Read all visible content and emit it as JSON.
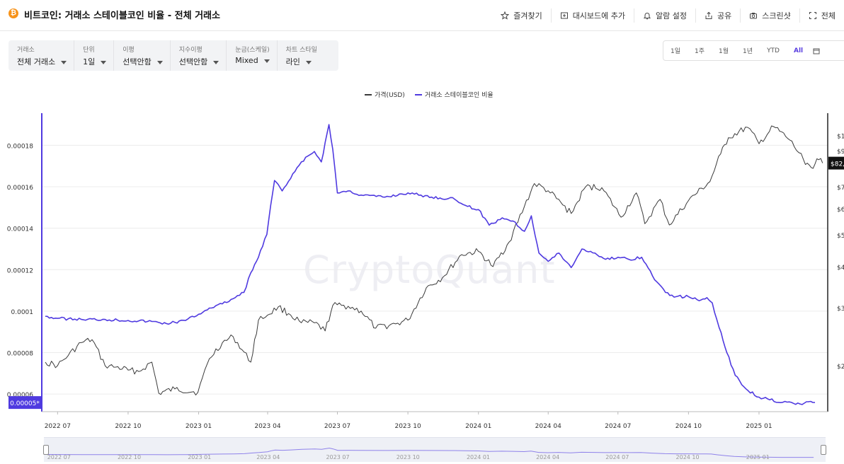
{
  "header": {
    "coin_icon": "bitcoin-icon",
    "title": "비트코인: 거래소 스테이블코인 비율 - 전체 거래소",
    "actions": [
      {
        "label": "즐겨찾기",
        "icon": "star-icon"
      },
      {
        "label": "대시보드에 추가",
        "icon": "dashboard-add-icon"
      },
      {
        "label": "알람 설정",
        "icon": "bell-icon"
      },
      {
        "label": "공유",
        "icon": "share-icon"
      },
      {
        "label": "스크린샷",
        "icon": "camera-icon"
      },
      {
        "label": "전체",
        "icon": "fullscreen-icon"
      }
    ]
  },
  "filters": [
    {
      "label": "거래소",
      "value": "전체 거래소"
    },
    {
      "label": "단위",
      "value": "1일"
    },
    {
      "label": "이평",
      "value": "선택안함"
    },
    {
      "label": "지수이평",
      "value": "선택안함"
    },
    {
      "label": "눈금(스케일)",
      "value": "Mixed"
    },
    {
      "label": "차트 스타일",
      "value": "라인"
    }
  ],
  "ranges": [
    "1일",
    "1주",
    "1월",
    "1년",
    "YTD",
    "All"
  ],
  "active_range": "All",
  "colors": {
    "accent": "#5a3fe0",
    "ratio": "#4f3ae0",
    "price": "#3a3a3a"
  },
  "watermark": "CryptoQuant",
  "chart_data": {
    "type": "line",
    "legend": [
      {
        "name": "가격(USD)",
        "color": "#3a3a3a"
      },
      {
        "name": "거래소 스테이블코인 비율",
        "color": "#4f3ae0"
      }
    ],
    "x_labels": [
      "2022 07",
      "2022 10",
      "2023 01",
      "2023 04",
      "2023 07",
      "2023 10",
      "2024 01",
      "2024 04",
      "2024 07",
      "2024 10",
      "2025 01"
    ],
    "y_left_labels": [
      "0.00006",
      "0.00008",
      "0.0001",
      "0.00012",
      "0.00014",
      "0.00016",
      "0.00018"
    ],
    "y_left_range": [
      5.15e-05,
      0.0001955
    ],
    "y_right_labels": [
      "$2",
      "$3",
      "$4",
      "$5",
      "$6",
      "$7",
      "$9",
      "$1"
    ],
    "y_right_scale": "log",
    "current_left_label": "0.00005*",
    "current_right_label": "$82,",
    "series": [
      {
        "name": "거래소 스테이블코인 비율",
        "axis": "left",
        "points": [
          [
            "2022-06-15",
            9.75e-05
          ],
          [
            "2022-07-01",
            9.65e-05
          ],
          [
            "2022-08-01",
            9.6e-05
          ],
          [
            "2022-09-01",
            9.6e-05
          ],
          [
            "2022-10-01",
            9.55e-05
          ],
          [
            "2022-11-01",
            9.5e-05
          ],
          [
            "2022-11-20",
            9.4e-05
          ],
          [
            "2022-12-15",
            9.55e-05
          ],
          [
            "2023-01-01",
            9.85e-05
          ],
          [
            "2023-01-15",
            0.0001015
          ],
          [
            "2023-02-01",
            0.0001035
          ],
          [
            "2023-02-15",
            0.000106
          ],
          [
            "2023-03-01",
            0.000109
          ],
          [
            "2023-03-10",
            0.0001185
          ],
          [
            "2023-03-20",
            0.000126
          ],
          [
            "2023-03-31",
            0.000137
          ],
          [
            "2023-04-05",
            0.000151
          ],
          [
            "2023-04-10",
            0.000163
          ],
          [
            "2023-04-20",
            0.000158
          ],
          [
            "2023-05-01",
            0.000164
          ],
          [
            "2023-05-15",
            0.000172
          ],
          [
            "2023-06-01",
            0.000177
          ],
          [
            "2023-06-10",
            0.000172
          ],
          [
            "2023-06-20",
            0.00019
          ],
          [
            "2023-06-25",
            0.000178
          ],
          [
            "2023-07-01",
            0.000157
          ],
          [
            "2023-07-15",
            0.000158
          ],
          [
            "2023-08-01",
            0.000156
          ],
          [
            "2023-09-01",
            0.000155
          ],
          [
            "2023-10-01",
            0.000157
          ],
          [
            "2023-11-01",
            0.000155
          ],
          [
            "2023-12-01",
            0.000154
          ],
          [
            "2023-12-15",
            0.000151
          ],
          [
            "2024-01-01",
            0.000149
          ],
          [
            "2024-01-15",
            0.0001415
          ],
          [
            "2024-02-01",
            0.000145
          ],
          [
            "2024-02-15",
            0.0001435
          ],
          [
            "2024-03-01",
            0.0001385
          ],
          [
            "2024-03-10",
            0.000146
          ],
          [
            "2024-03-20",
            0.000128
          ],
          [
            "2024-04-01",
            0.000124
          ],
          [
            "2024-04-15",
            0.000128
          ],
          [
            "2024-05-01",
            0.000121
          ],
          [
            "2024-05-15",
            0.00013
          ],
          [
            "2024-06-01",
            0.000128
          ],
          [
            "2024-06-15",
            0.000125
          ],
          [
            "2024-07-01",
            0.000126
          ],
          [
            "2024-07-15",
            0.000125
          ],
          [
            "2024-08-01",
            0.000126
          ],
          [
            "2024-08-15",
            0.000117
          ],
          [
            "2024-09-01",
            0.000109
          ],
          [
            "2024-09-15",
            0.000107
          ],
          [
            "2024-10-01",
            0.000107
          ],
          [
            "2024-10-15",
            0.000105
          ],
          [
            "2024-10-25",
            0.0001065
          ],
          [
            "2024-11-01",
            0.000104
          ],
          [
            "2024-11-10",
            9.2e-05
          ],
          [
            "2024-11-20",
            8e-05
          ],
          [
            "2024-12-01",
            6.9e-05
          ],
          [
            "2024-12-15",
            6.25e-05
          ],
          [
            "2025-01-01",
            5.85e-05
          ],
          [
            "2025-01-15",
            5.72e-05
          ],
          [
            "2025-02-01",
            5.6e-05
          ],
          [
            "2025-02-15",
            5.55e-05
          ],
          [
            "2025-03-01",
            5.56e-05
          ],
          [
            "2025-03-15",
            5.59e-05
          ]
        ]
      },
      {
        "name": "가격(USD)",
        "axis": "right",
        "points": [
          [
            "2022-06-15",
            20500
          ],
          [
            "2022-07-01",
            20000
          ],
          [
            "2022-07-15",
            21500
          ],
          [
            "2022-08-01",
            23500
          ],
          [
            "2022-08-15",
            24000
          ],
          [
            "2022-09-01",
            20000
          ],
          [
            "2022-09-15",
            19800
          ],
          [
            "2022-10-01",
            19400
          ],
          [
            "2022-10-15",
            19200
          ],
          [
            "2022-11-01",
            20500
          ],
          [
            "2022-11-10",
            16500
          ],
          [
            "2022-12-01",
            17000
          ],
          [
            "2022-12-31",
            16600
          ],
          [
            "2023-01-15",
            21000
          ],
          [
            "2023-02-01",
            23500
          ],
          [
            "2023-02-15",
            24500
          ],
          [
            "2023-03-10",
            20500
          ],
          [
            "2023-03-20",
            27500
          ],
          [
            "2023-04-01",
            28500
          ],
          [
            "2023-04-15",
            30200
          ],
          [
            "2023-05-01",
            28500
          ],
          [
            "2023-05-15",
            27000
          ],
          [
            "2023-06-01",
            27000
          ],
          [
            "2023-06-15",
            25500
          ],
          [
            "2023-06-25",
            30500
          ],
          [
            "2023-07-15",
            30300
          ],
          [
            "2023-08-01",
            29300
          ],
          [
            "2023-08-20",
            26000
          ],
          [
            "2023-09-15",
            26800
          ],
          [
            "2023-10-01",
            27500
          ],
          [
            "2023-10-25",
            34500
          ],
          [
            "2023-11-15",
            37000
          ],
          [
            "2023-12-10",
            43500
          ],
          [
            "2024-01-01",
            44500
          ],
          [
            "2024-01-20",
            40000
          ],
          [
            "2024-02-10",
            47500
          ],
          [
            "2024-03-01",
            61000
          ],
          [
            "2024-03-14",
            71500
          ],
          [
            "2024-04-01",
            68000
          ],
          [
            "2024-05-01",
            58000
          ],
          [
            "2024-05-20",
            70000
          ],
          [
            "2024-06-10",
            69500
          ],
          [
            "2024-07-05",
            56500
          ],
          [
            "2024-07-25",
            67000
          ],
          [
            "2024-08-05",
            54000
          ],
          [
            "2024-08-25",
            64000
          ],
          [
            "2024-09-06",
            53500
          ],
          [
            "2024-10-01",
            63500
          ],
          [
            "2024-10-29",
            72500
          ],
          [
            "2024-11-12",
            88000
          ],
          [
            "2024-11-22",
            98500
          ],
          [
            "2024-12-17",
            106000
          ],
          [
            "2025-01-01",
            94500
          ],
          [
            "2025-01-20",
            106500
          ],
          [
            "2025-02-10",
            97000
          ],
          [
            "2025-02-28",
            84500
          ],
          [
            "2025-03-10",
            80000
          ],
          [
            "2025-03-20",
            84500
          ],
          [
            "2025-03-25",
            82500
          ]
        ]
      }
    ],
    "grid": true
  }
}
